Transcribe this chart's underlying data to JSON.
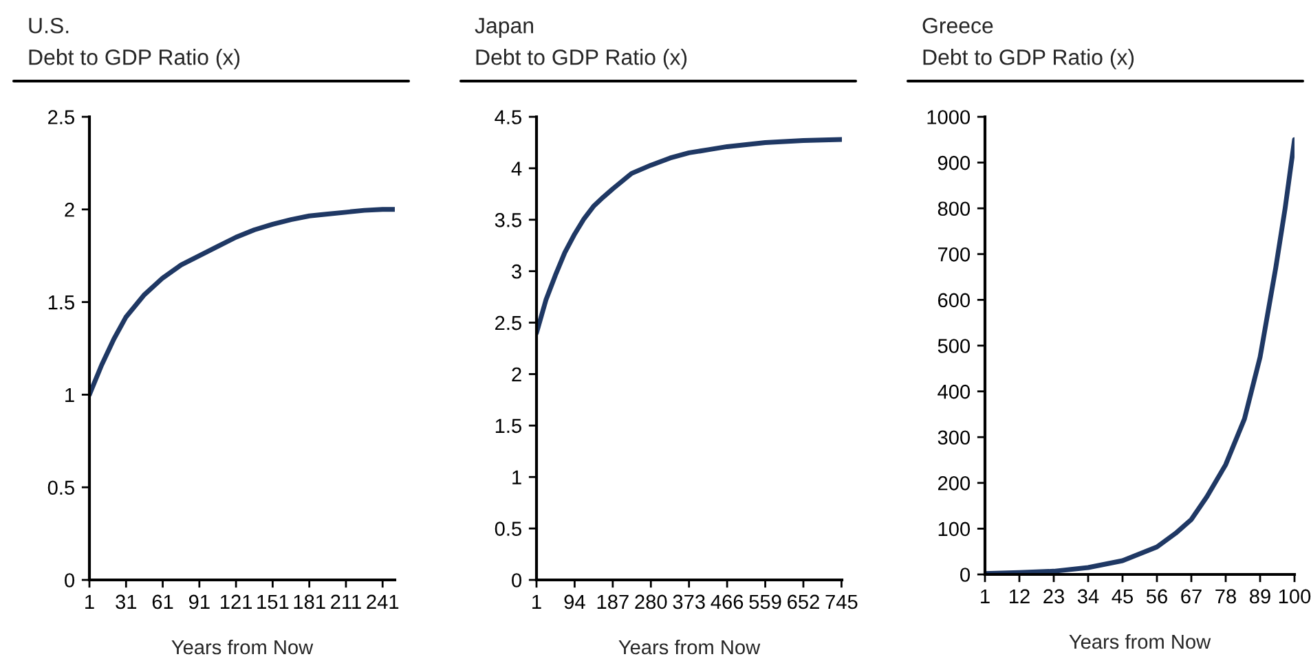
{
  "chart_data": [
    {
      "type": "line",
      "title": "U.S.",
      "subtitle": "Debt to GDP Ratio (x)",
      "xlabel": "Years from Now",
      "x": [
        1,
        11,
        21,
        31,
        46,
        61,
        76,
        91,
        106,
        121,
        136,
        151,
        166,
        181,
        196,
        211,
        226,
        241,
        251
      ],
      "series": [
        {
          "color": "#1f3864",
          "values": [
            1.0,
            1.16,
            1.3,
            1.42,
            1.54,
            1.63,
            1.7,
            1.75,
            1.8,
            1.85,
            1.89,
            1.92,
            1.945,
            1.965,
            1.975,
            1.985,
            1.995,
            2.0,
            2.0
          ]
        }
      ],
      "xlim": [
        1,
        251
      ],
      "xticks": [
        1,
        31,
        61,
        91,
        121,
        151,
        181,
        211,
        241
      ],
      "ylim": [
        0,
        2.5
      ],
      "yticks": [
        {
          "value": 0,
          "label": "0"
        },
        0.5,
        {
          "value": 1,
          "label": "1"
        },
        1.5,
        {
          "value": 2,
          "label": "2"
        },
        2.5
      ],
      "grid": false
    },
    {
      "type": "line",
      "title": "Japan",
      "subtitle": "Debt to GDP Ratio (x)",
      "xlabel": "Years from Now",
      "x": [
        1,
        24,
        47,
        70,
        94,
        117,
        140,
        164,
        187,
        233,
        280,
        327,
        373,
        420,
        466,
        559,
        652,
        746
      ],
      "series": [
        {
          "color": "#1f3864",
          "values": [
            2.4,
            2.72,
            2.96,
            3.18,
            3.36,
            3.51,
            3.63,
            3.72,
            3.8,
            3.95,
            4.03,
            4.1,
            4.15,
            4.18,
            4.21,
            4.25,
            4.27,
            4.28
          ]
        }
      ],
      "xlim": [
        1,
        746
      ],
      "xticks": [
        1,
        94,
        187,
        280,
        373,
        466,
        559,
        652,
        745
      ],
      "ylim": [
        0,
        4.5
      ],
      "yticks": [
        {
          "value": 0,
          "label": "0"
        },
        0.5,
        {
          "value": 1,
          "label": "1"
        },
        1.5,
        {
          "value": 2,
          "label": "2"
        },
        2.5,
        {
          "value": 3,
          "label": "3"
        },
        3.5,
        {
          "value": 4,
          "label": "4"
        },
        4.5
      ],
      "grid": false
    },
    {
      "type": "line",
      "title": "Greece",
      "subtitle": "Debt to GDP Ratio (x)",
      "xlabel": "Years from Now",
      "x": [
        1,
        12,
        23,
        34,
        45,
        56,
        62,
        67,
        72,
        78,
        84,
        89,
        94,
        97,
        100
      ],
      "series": [
        {
          "color": "#1f3864",
          "values": [
            2,
            4,
            7,
            15,
            30,
            60,
            90,
            120,
            170,
            240,
            340,
            475,
            670,
            800,
            950
          ]
        }
      ],
      "xlim": [
        1,
        100
      ],
      "xticks": [
        1,
        12,
        23,
        34,
        45,
        56,
        67,
        78,
        89,
        100
      ],
      "ylim": [
        0,
        1000
      ],
      "yticks": [
        0,
        100,
        200,
        300,
        400,
        500,
        600,
        700,
        800,
        900,
        1000
      ],
      "grid": false
    }
  ]
}
